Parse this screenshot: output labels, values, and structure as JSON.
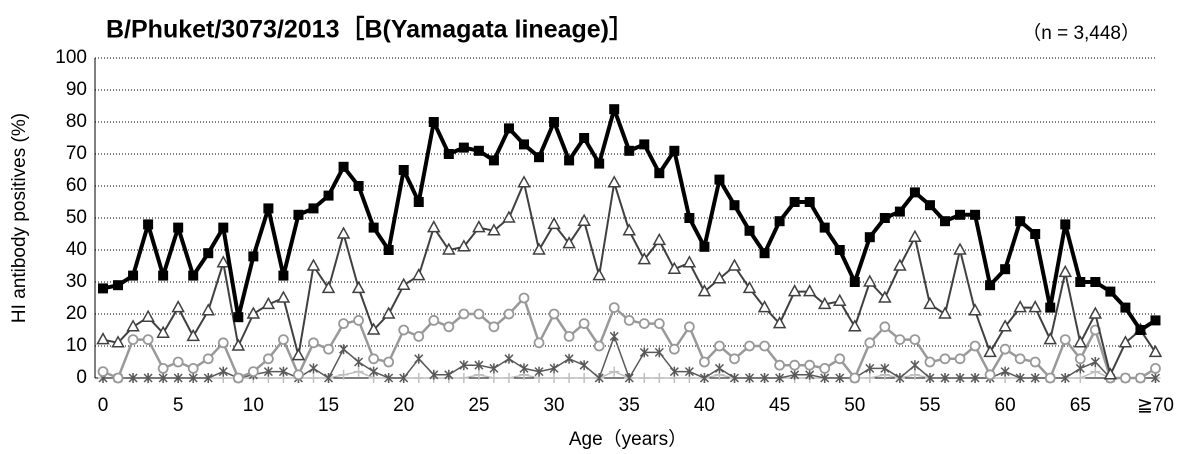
{
  "chart_data": {
    "type": "line",
    "title": "B/Phuket/3073/2013［B(Yamagata lineage)］",
    "subtitle": "（n = 3,448）",
    "x_label": "Age（years）",
    "y_label": "HI antibody positives (%)",
    "categories": [
      "0",
      null,
      null,
      null,
      null,
      "5",
      null,
      null,
      null,
      null,
      "10",
      null,
      null,
      null,
      null,
      "15",
      null,
      null,
      null,
      null,
      "20",
      null,
      null,
      null,
      null,
      "25",
      null,
      null,
      null,
      null,
      "30",
      null,
      null,
      null,
      null,
      "35",
      null,
      null,
      null,
      null,
      "40",
      null,
      null,
      null,
      null,
      "45",
      null,
      null,
      null,
      null,
      "50",
      null,
      null,
      null,
      null,
      "55",
      null,
      null,
      null,
      null,
      "60",
      null,
      null,
      null,
      null,
      "65",
      null,
      null,
      null,
      null,
      "≧70"
    ],
    "ylim": [
      0,
      100
    ],
    "yticks": [
      0,
      10,
      20,
      30,
      40,
      50,
      60,
      70,
      80,
      90,
      100
    ],
    "grid": true,
    "series": [
      {
        "color": "#000000",
        "marker": "square",
        "values": [
          28,
          29,
          32,
          48,
          32,
          47,
          32,
          39,
          47,
          19,
          38,
          53,
          32,
          51,
          53,
          57,
          66,
          60,
          47,
          40,
          65,
          55,
          80,
          70,
          72,
          71,
          68,
          78,
          73,
          69,
          80,
          68,
          75,
          67,
          84,
          71,
          73,
          64,
          71,
          50,
          41,
          62,
          54,
          46,
          39,
          49,
          55,
          55,
          47,
          40,
          30,
          44,
          50,
          52,
          58,
          54,
          49,
          51,
          51,
          29,
          34,
          49,
          45,
          22,
          48,
          30,
          30,
          27,
          22,
          15,
          18
        ]
      },
      {
        "color": "#404040",
        "marker": "triangle",
        "values": [
          12,
          11,
          16,
          19,
          14,
          22,
          13,
          21,
          36,
          10,
          20,
          23,
          25,
          7,
          35,
          28,
          45,
          28,
          15,
          20,
          29,
          32,
          47,
          40,
          41,
          47,
          46,
          50,
          61,
          40,
          48,
          42,
          49,
          32,
          61,
          46,
          37,
          43,
          34,
          36,
          27,
          31,
          35,
          28,
          22,
          17,
          27,
          27,
          23,
          24,
          16,
          30,
          25,
          35,
          44,
          23,
          20,
          40,
          21,
          8,
          16,
          22,
          22,
          12,
          33,
          11,
          20,
          1,
          11,
          15,
          8
        ]
      },
      {
        "color": "#999999",
        "marker": "circle",
        "values": [
          2,
          0,
          12,
          12,
          3,
          5,
          3,
          6,
          11,
          0,
          2,
          6,
          12,
          1,
          11,
          9,
          17,
          18,
          6,
          5,
          15,
          13,
          18,
          16,
          20,
          20,
          16,
          20,
          25,
          11,
          20,
          13,
          17,
          10,
          22,
          18,
          17,
          17,
          9,
          16,
          5,
          10,
          6,
          10,
          10,
          4,
          4,
          4,
          3,
          6,
          0,
          11,
          16,
          12,
          12,
          5,
          6,
          6,
          10,
          1,
          9,
          6,
          5,
          0,
          12,
          6,
          15,
          0,
          0,
          0,
          3
        ]
      },
      {
        "color": "#595959",
        "marker": "asterisk",
        "values": [
          0,
          0,
          0,
          0,
          0,
          0,
          0,
          0,
          2,
          0,
          1,
          2,
          2,
          0,
          3,
          0,
          9,
          5,
          2,
          0,
          0,
          6,
          1,
          1,
          4,
          4,
          3,
          6,
          3,
          2,
          3,
          6,
          4,
          0,
          13,
          0,
          8,
          8,
          2,
          2,
          0,
          3,
          0,
          0,
          0,
          0,
          1,
          1,
          0,
          0,
          0,
          3,
          3,
          0,
          4,
          0,
          0,
          0,
          0,
          0,
          2,
          0,
          0,
          0,
          0,
          3,
          5,
          0,
          0,
          0,
          0
        ]
      },
      {
        "color": "#bfbfbf",
        "marker": "cross",
        "values": [
          0,
          0,
          0,
          0,
          0,
          0,
          0,
          0,
          0,
          0,
          0,
          0,
          0,
          0,
          0,
          0,
          1,
          2,
          0,
          0,
          0,
          0,
          0,
          0,
          0,
          1,
          0,
          0,
          1,
          0,
          0,
          0,
          0,
          0,
          2,
          0,
          0,
          0,
          0,
          0,
          0,
          1,
          0,
          0,
          0,
          0,
          0,
          0,
          0,
          0,
          0,
          0,
          1,
          0,
          1,
          0,
          0,
          0,
          0,
          0,
          0,
          0,
          0,
          0,
          0,
          0,
          2,
          0,
          0,
          0,
          0
        ]
      }
    ]
  }
}
